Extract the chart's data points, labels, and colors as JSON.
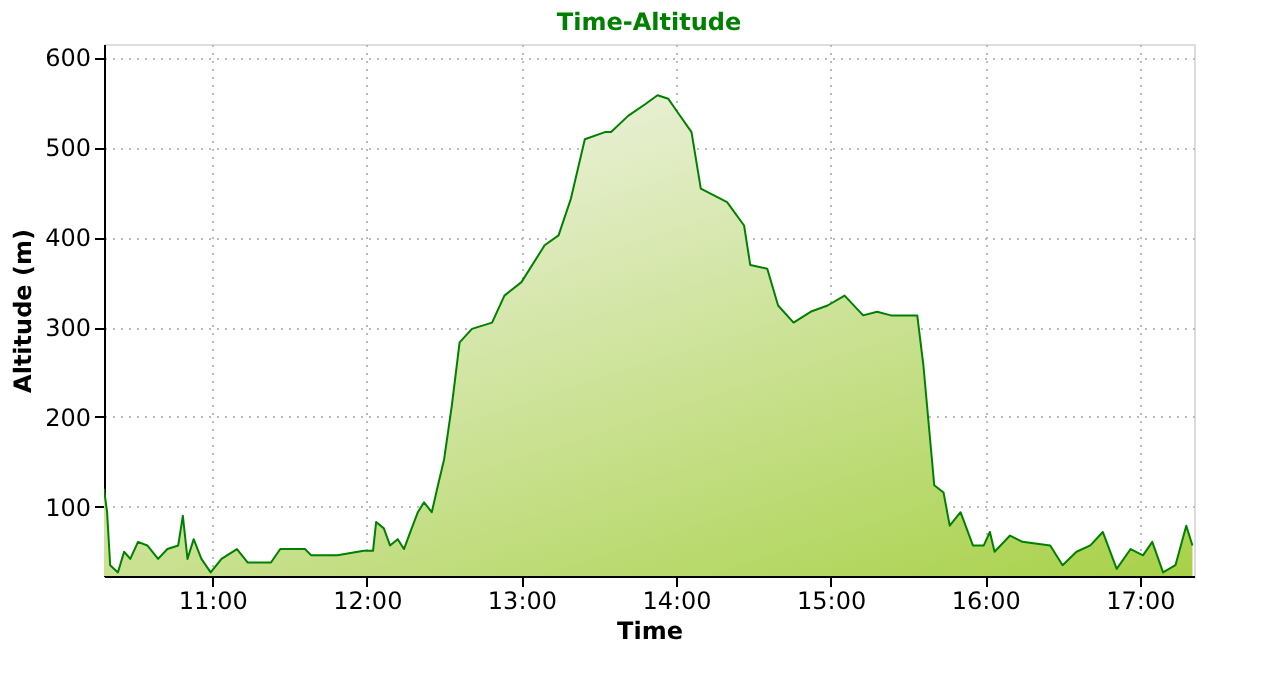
{
  "chart_data": {
    "type": "area",
    "title": "Time-Altitude",
    "xlabel": "Time",
    "ylabel": "Altitude (m)",
    "x": [
      10.3,
      10.32,
      10.34,
      10.39,
      10.43,
      10.47,
      10.52,
      10.58,
      10.65,
      10.71,
      10.78,
      10.81,
      10.84,
      10.88,
      10.93,
      10.99,
      11.06,
      11.16,
      11.23,
      11.38,
      11.44,
      11.6,
      11.64,
      11.81,
      11.98,
      12.04,
      12.06,
      12.11,
      12.15,
      12.2,
      12.24,
      12.29,
      12.33,
      12.37,
      12.42,
      12.46,
      12.5,
      12.55,
      12.6,
      12.68,
      12.81,
      12.89,
      13.0,
      13.15,
      13.24,
      13.32,
      13.41,
      13.54,
      13.58,
      13.69,
      13.8,
      13.88,
      13.95,
      14.01,
      14.1,
      14.16,
      14.33,
      14.44,
      14.48,
      14.59,
      14.66,
      14.76,
      14.87,
      14.98,
      15.09,
      15.21,
      15.3,
      15.39,
      15.56,
      15.6,
      15.67,
      15.73,
      15.77,
      15.84,
      15.92,
      15.99,
      16.03,
      16.06,
      16.16,
      16.24,
      16.42,
      16.5,
      16.59,
      16.68,
      16.76,
      16.85,
      16.94,
      17.02,
      17.08,
      17.15,
      17.23,
      17.3,
      17.34
    ],
    "series": [
      {
        "color": "#008000",
        "values": [
          120,
          94,
          35,
          27,
          50,
          42,
          61,
          57,
          42,
          53,
          57,
          90,
          42,
          64,
          42,
          27,
          42,
          53,
          38,
          38,
          53,
          53,
          46,
          46,
          51,
          51,
          83,
          76,
          57,
          64,
          53,
          76,
          94,
          105,
          94,
          124,
          153,
          213,
          283,
          298,
          305,
          335,
          350,
          391,
          402,
          443,
          509,
          517,
          517,
          535,
          548,
          558,
          554,
          539,
          517,
          454,
          439,
          413,
          369,
          365,
          324,
          305,
          317,
          324,
          335,
          313,
          317,
          313,
          313,
          257,
          124,
          116,
          79,
          94,
          57,
          57,
          72,
          50,
          68,
          61,
          57,
          35,
          50,
          57,
          72,
          31,
          53,
          46,
          61,
          27,
          35,
          79,
          57
        ]
      }
    ],
    "xlim": [
      10.3,
      17.35
    ],
    "ylim": [
      23,
      615
    ],
    "xticks": [
      {
        "value": 11,
        "label": "11:00"
      },
      {
        "value": 12,
        "label": "12:00"
      },
      {
        "value": 13,
        "label": "13:00"
      },
      {
        "value": 14,
        "label": "14:00"
      },
      {
        "value": 15,
        "label": "15:00"
      },
      {
        "value": 16,
        "label": "16:00"
      },
      {
        "value": 17,
        "label": "17:00"
      }
    ],
    "yticks": [
      100,
      200,
      300,
      400,
      500,
      600
    ],
    "grid": true,
    "marker": "none",
    "line_style": "solid"
  }
}
